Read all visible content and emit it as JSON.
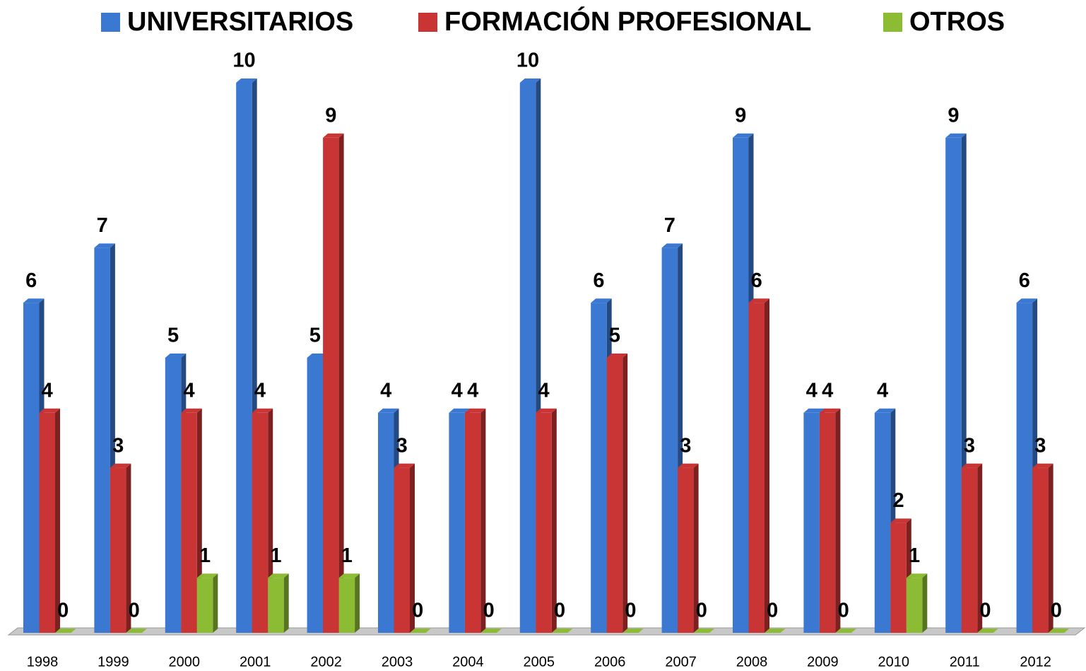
{
  "chart_data": {
    "type": "bar",
    "categories": [
      "1998",
      "1999",
      "2000",
      "2001",
      "2002",
      "2003",
      "2004",
      "2005",
      "2006",
      "2007",
      "2008",
      "2009",
      "2010",
      "2011",
      "2012"
    ],
    "series": [
      {
        "name": "UNIVERSITARIOS",
        "color": "#3b78d1",
        "values": [
          6,
          7,
          5,
          10,
          5,
          4,
          4,
          10,
          6,
          7,
          9,
          4,
          4,
          9,
          6
        ]
      },
      {
        "name": "FORMACIÓN PROFESIONAL",
        "color": "#c93434",
        "values": [
          4,
          3,
          4,
          4,
          9,
          3,
          4,
          4,
          5,
          3,
          6,
          4,
          2,
          3,
          3
        ]
      },
      {
        "name": "OTROS",
        "color": "#8cbb34",
        "values": [
          0,
          0,
          1,
          1,
          1,
          0,
          0,
          0,
          0,
          0,
          0,
          0,
          1,
          0,
          0
        ]
      }
    ],
    "ylim": [
      0,
      10
    ],
    "legend": "top",
    "grid": false
  }
}
